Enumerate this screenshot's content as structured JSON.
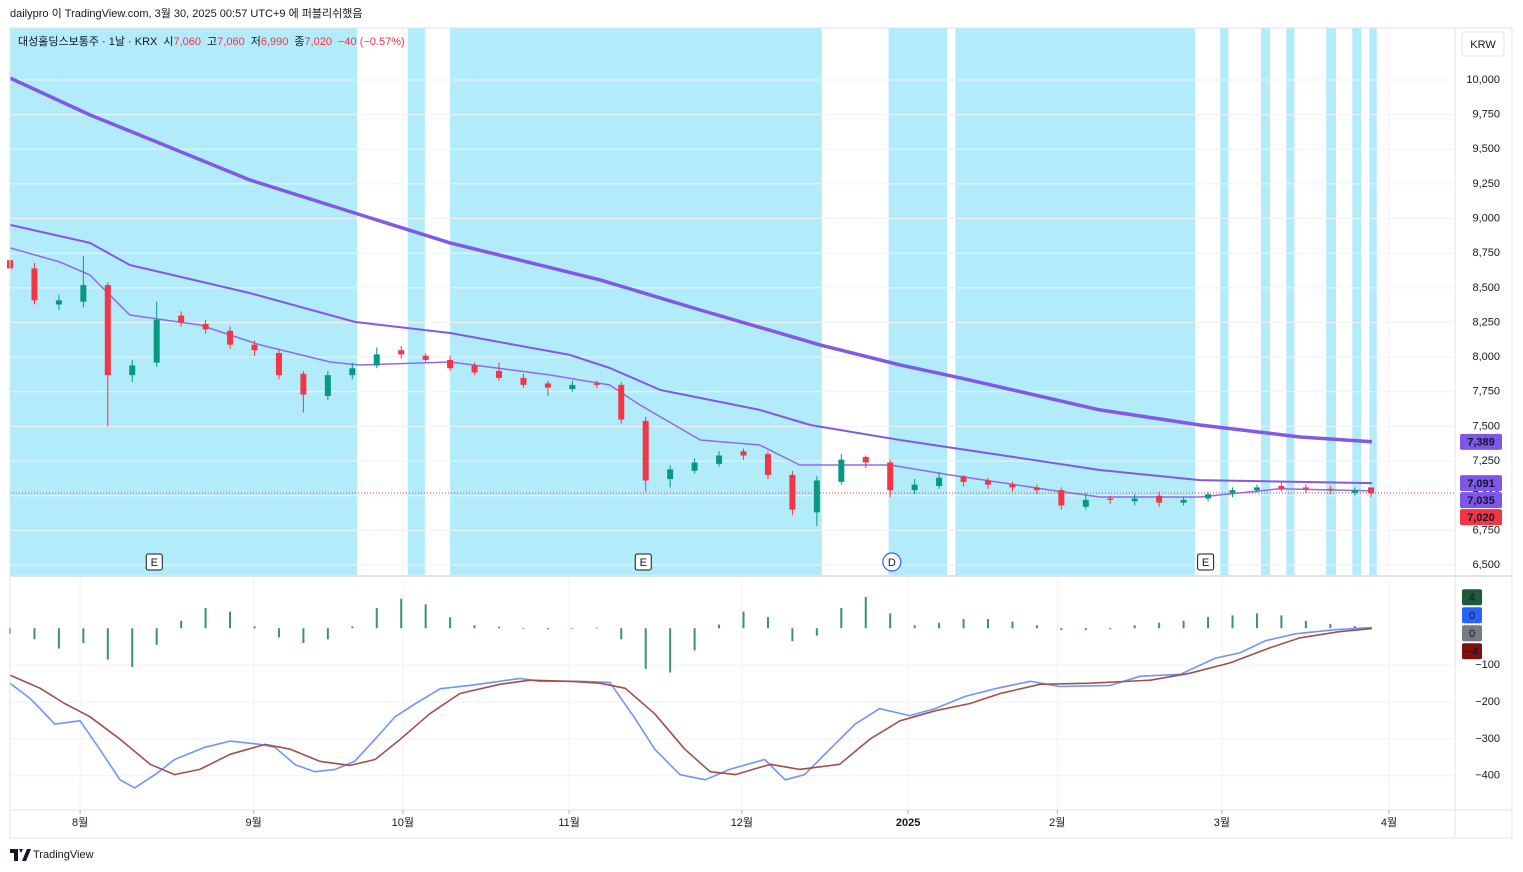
{
  "header": {
    "publisher": "dailypro 이 TradingView.com, 3월 30, 2025 00:57 UTC+9 에 퍼블리쉬했음",
    "watermark": "TradingView"
  },
  "chart_data": [
    {
      "type": "candlestick",
      "legend": {
        "symbol": "대성홀딩스보통주 · 1날 · KRX",
        "items": [
          {
            "label": "시",
            "value": "7,060"
          },
          {
            "label": "고",
            "value": "7,060"
          },
          {
            "label": "저",
            "value": "6,990"
          },
          {
            "label": "종",
            "value": "7,020"
          }
        ],
        "change": "−40 (−0.57%)"
      },
      "currency": "KRW",
      "up_color": "#089981",
      "down_color": "#f23645",
      "x": [
        0,
        3,
        6,
        9,
        12,
        15,
        18,
        21,
        24,
        27,
        30,
        33,
        36,
        39,
        42,
        45,
        48,
        51,
        54,
        57,
        60,
        63,
        66,
        69,
        72,
        75,
        78,
        81,
        84,
        87,
        90,
        93,
        96,
        99,
        102,
        105,
        108,
        111,
        114,
        117,
        120,
        123,
        126,
        129,
        132,
        135,
        138,
        141,
        144,
        147,
        150,
        153,
        156,
        159,
        162,
        165,
        167
      ],
      "open": [
        8700,
        8640,
        8380,
        8400,
        8520,
        7870,
        7960,
        8300,
        8240,
        8190,
        8090,
        8030,
        7880,
        7720,
        7870,
        7940,
        8050,
        8010,
        7980,
        7940,
        7900,
        7850,
        7810,
        7770,
        7810,
        7800,
        7540,
        7120,
        7180,
        7230,
        7320,
        7300,
        7150,
        6880,
        7100,
        7280,
        7240,
        7040,
        7070,
        7140,
        7110,
        7080,
        7060,
        7040,
        6920,
        6980,
        6960,
        7000,
        6950,
        6980,
        7020,
        7040,
        7070,
        7060,
        7050,
        7020,
        7060
      ],
      "high": [
        8740,
        8680,
        8450,
        8730,
        8540,
        7980,
        8400,
        8330,
        8270,
        8220,
        8120,
        8060,
        7900,
        7900,
        7960,
        8070,
        8080,
        8030,
        8010,
        7960,
        7960,
        7880,
        7830,
        7830,
        7830,
        7820,
        7570,
        7220,
        7270,
        7320,
        7340,
        7320,
        7180,
        7140,
        7300,
        7290,
        7260,
        7120,
        7170,
        7150,
        7130,
        7100,
        7080,
        7060,
        7020,
        7000,
        7010,
        7030,
        6990,
        7030,
        7060,
        7080,
        7100,
        7080,
        7070,
        7060,
        7060
      ],
      "low": [
        8600,
        8380,
        8340,
        8360,
        7500,
        7820,
        7930,
        8220,
        8170,
        8060,
        8010,
        7840,
        7600,
        7690,
        7840,
        7920,
        7990,
        7960,
        7900,
        7870,
        7830,
        7780,
        7720,
        7750,
        7780,
        7520,
        7030,
        7060,
        7160,
        7210,
        7260,
        7120,
        6860,
        6780,
        7080,
        7200,
        6990,
        7010,
        7050,
        7070,
        7050,
        7030,
        7010,
        6900,
        6900,
        6940,
        6930,
        6920,
        6930,
        6960,
        6990,
        7020,
        7030,
        7020,
        7010,
        7000,
        6990
      ],
      "close": [
        8640,
        8410,
        8410,
        8520,
        7870,
        7940,
        8270,
        8250,
        8200,
        8090,
        8050,
        7870,
        7730,
        7870,
        7920,
        8020,
        8020,
        7980,
        7920,
        7890,
        7850,
        7800,
        7780,
        7800,
        7800,
        7550,
        7110,
        7190,
        7240,
        7290,
        7290,
        7150,
        6900,
        7110,
        7260,
        7240,
        7040,
        7080,
        7130,
        7100,
        7080,
        7060,
        7040,
        6930,
        6970,
        6970,
        6980,
        6950,
        6970,
        7010,
        7040,
        7060,
        7050,
        7050,
        7040,
        7040,
        7020
      ],
      "overlays": [
        {
          "color": "#8259e6",
          "width": 3.5,
          "x": [
            0,
            9.8,
            15.9,
            29.4,
            42.3,
            54,
            72.4,
            84.7,
            99.4,
            109.2,
            116.6,
            133.7,
            146,
            158.3,
            167.1
          ],
          "values": [
            10014,
            9748,
            9603,
            9279,
            9040,
            8824,
            8557,
            8340,
            8088,
            7944,
            7850,
            7619,
            7510,
            7424,
            7389
          ]
        },
        {
          "color": "#8259e6",
          "width": 2,
          "x": [
            0,
            9.8,
            14.7,
            29.4,
            42.3,
            54,
            68.7,
            73.6,
            79.8,
            92,
            98.2,
            109.2,
            121.5,
            133.7,
            146,
            167.1
          ],
          "values": [
            8954,
            8824,
            8665,
            8463,
            8254,
            8174,
            8016,
            7922,
            7763,
            7619,
            7510,
            7402,
            7294,
            7186,
            7113,
            7091
          ]
        },
        {
          "color": "#8f6be8",
          "width": 1.5,
          "x": [
            0,
            6.1,
            9.8,
            14.7,
            23.3,
            30.7,
            39.3,
            42.9,
            54,
            66.3,
            73.6,
            77.3,
            84.7,
            92,
            96.9,
            108,
            115.3,
            127.6,
            133.7,
            146,
            155.8,
            167.1
          ],
          "values": [
            8788,
            8687,
            8593,
            8304,
            8232,
            8088,
            7965,
            7943,
            7965,
            7871,
            7799,
            7655,
            7402,
            7366,
            7222,
            7222,
            7150,
            7041,
            6991,
            6991,
            7050,
            7035
          ]
        }
      ],
      "shade_color": "#b2ebfa",
      "shaded_ranges": [
        [
          0,
          42.6
        ],
        [
          48.8,
          50.9
        ],
        [
          54,
          99.6
        ],
        [
          107.8,
          115
        ],
        [
          116,
          145.4
        ],
        [
          148.5,
          149.5
        ],
        [
          153.5,
          154.6
        ],
        [
          156.6,
          157.6
        ],
        [
          161.5,
          162.7
        ],
        [
          164.7,
          165.8
        ],
        [
          166.8,
          167.7
        ]
      ],
      "events": [
        {
          "x": 17.7,
          "label": "E",
          "shape": "square",
          "color": "#131722"
        },
        {
          "x": 77.7,
          "label": "E",
          "shape": "square",
          "color": "#131722"
        },
        {
          "x": 108.2,
          "label": "D",
          "shape": "circle",
          "color": "#2962ff"
        },
        {
          "x": 146.7,
          "label": "E",
          "shape": "square",
          "color": "#131722"
        }
      ],
      "price_tags": [
        {
          "value": 7389,
          "label": "7,389",
          "color": "#7e57e8"
        },
        {
          "value": 7091,
          "label": "7,091",
          "color": "#7e57e8"
        },
        {
          "value": 7035,
          "label": "7,035",
          "color": "#7e57e8"
        },
        {
          "value": 7020,
          "label": "7,020",
          "color": "#f23645"
        }
      ],
      "xlim": [
        0,
        177.3
      ],
      "xticks": [
        {
          "value": 8.6,
          "label": "8월"
        },
        {
          "value": 29.9,
          "label": "9월"
        },
        {
          "value": 48.2,
          "label": "10월"
        },
        {
          "value": 68.6,
          "label": "11월"
        },
        {
          "value": 89.8,
          "label": "12월"
        },
        {
          "value": 110.2,
          "label": "2025",
          "bold": true
        },
        {
          "value": 128.5,
          "label": "2월"
        },
        {
          "value": 148.7,
          "label": "3월"
        },
        {
          "value": 169.2,
          "label": "4월"
        }
      ],
      "ylim": [
        6428,
        10375
      ],
      "yticks": [
        {
          "value": 6500,
          "label": "6,500"
        },
        {
          "value": 6750,
          "label": "6,750"
        },
        {
          "value": 7000,
          "label": "7,000"
        },
        {
          "value": 7250,
          "label": "7,250"
        },
        {
          "value": 7500,
          "label": "7,500"
        },
        {
          "value": 7750,
          "label": "7,750"
        },
        {
          "value": 8000,
          "label": "8,000"
        },
        {
          "value": 8250,
          "label": "8,250"
        },
        {
          "value": 8500,
          "label": "8,500"
        },
        {
          "value": 8750,
          "label": "8,750"
        },
        {
          "value": 9000,
          "label": "9,000"
        },
        {
          "value": 9250,
          "label": "9,250"
        },
        {
          "value": 9500,
          "label": "9,500"
        },
        {
          "value": 9750,
          "label": "9,750"
        },
        {
          "value": 10000,
          "label": "10,000"
        }
      ],
      "grid": true
    },
    {
      "type": "macd",
      "hist_color": "#3d8f78",
      "hist_x": [
        0,
        3,
        6,
        9,
        12,
        15,
        18,
        21,
        24,
        27,
        30,
        33,
        36,
        39,
        42,
        45,
        48,
        51,
        54,
        57,
        60,
        63,
        66,
        69,
        72,
        75,
        78,
        81,
        84,
        87,
        90,
        93,
        96,
        99,
        102,
        105,
        108,
        111,
        114,
        117,
        120,
        123,
        126,
        129,
        132,
        135,
        138,
        141,
        144,
        147,
        150,
        153,
        156,
        159,
        162,
        165
      ],
      "histogram": [
        -15,
        -30,
        -55,
        -40,
        -85,
        -105,
        -45,
        20,
        55,
        45,
        5,
        -25,
        -40,
        -30,
        5,
        55,
        80,
        65,
        30,
        8,
        4,
        -2,
        -3,
        -2,
        2,
        -30,
        -110,
        -120,
        -60,
        10,
        45,
        30,
        -35,
        -20,
        55,
        85,
        40,
        8,
        15,
        25,
        25,
        18,
        8,
        -5,
        -5,
        -3,
        8,
        15,
        20,
        30,
        35,
        40,
        35,
        20,
        12,
        6
      ],
      "series": [
        {
          "color": "#6f95f7",
          "x": [
            0,
            2.5,
            5.5,
            8.6,
            11,
            13.5,
            15.3,
            17.8,
            20.2,
            23.9,
            27,
            30.7,
            32.5,
            35,
            37.4,
            39.9,
            42.3,
            44.8,
            47.2,
            49.7,
            52.8,
            56.4,
            60.1,
            62.6,
            65,
            70,
            73.6,
            76.7,
            79.1,
            82.2,
            85.3,
            88.3,
            92.6,
            95.1,
            97.5,
            100.6,
            103.7,
            106.7,
            110.4,
            113.5,
            117.2,
            120.9,
            125.2,
            128.8,
            135,
            138.7,
            143.6,
            147.9,
            150.9,
            154,
            157.7,
            162.6,
            167.1
          ],
          "values": [
            -149,
            -191,
            -260,
            -251,
            -328,
            -411,
            -433,
            -397,
            -356,
            -323,
            -306,
            -315,
            -323,
            -370,
            -389,
            -383,
            -361,
            -301,
            -241,
            -205,
            -164,
            -155,
            -144,
            -136,
            -144,
            -144,
            -147,
            -245,
            -328,
            -397,
            -411,
            -383,
            -356,
            -411,
            -397,
            -328,
            -260,
            -218,
            -237,
            -218,
            -185,
            -164,
            -144,
            -158,
            -155,
            -130,
            -125,
            -81,
            -67,
            -34,
            -15,
            -4,
            2
          ]
        },
        {
          "color": "#a0504a",
          "x": [
            0,
            3.7,
            6.7,
            9.8,
            13.5,
            17.2,
            20.2,
            23.3,
            27,
            31.3,
            34.4,
            38,
            41.7,
            44.8,
            47.9,
            51.5,
            55.2,
            60.1,
            63.8,
            68.7,
            72.4,
            75.5,
            79.1,
            82.8,
            85.9,
            89,
            93.3,
            96.9,
            101.8,
            105.5,
            109.2,
            113.5,
            117.8,
            121.5,
            126.4,
            132.5,
            139.9,
            144.8,
            149.7,
            154.6,
            158.3,
            163.2,
            167.1
          ],
          "values": [
            -127,
            -163,
            -204,
            -240,
            -301,
            -369,
            -397,
            -383,
            -342,
            -315,
            -328,
            -361,
            -372,
            -356,
            -301,
            -232,
            -177,
            -152,
            -141,
            -144,
            -149,
            -163,
            -232,
            -328,
            -389,
            -397,
            -369,
            -383,
            -369,
            -301,
            -251,
            -224,
            -204,
            -177,
            -152,
            -149,
            -141,
            -122,
            -94,
            -53,
            -26,
            -9,
            -1
          ]
        }
      ],
      "tags": [
        {
          "value": 4,
          "color": "#1f5b3a"
        },
        {
          "value": 0,
          "color": "#2962ff"
        },
        {
          "value": 0,
          "color": "#787b86"
        },
        {
          "value": -4,
          "label": "−4",
          "color": "#801010"
        }
      ],
      "ylim": [
        -493,
        139
      ],
      "yticks": [
        {
          "value": -400,
          "label": "−400"
        },
        {
          "value": -300,
          "label": "−300"
        },
        {
          "value": -200,
          "label": "−200"
        },
        {
          "value": -100,
          "label": "−100"
        }
      ],
      "grid": true
    }
  ]
}
